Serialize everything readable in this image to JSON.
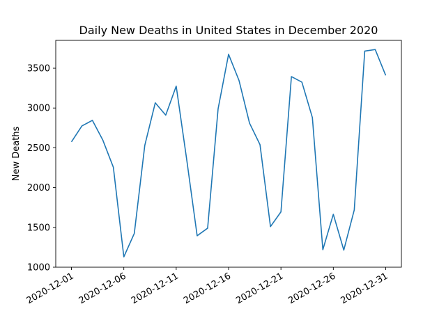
{
  "chart_data": {
    "type": "line",
    "title": "Daily New Deaths in United States in December 2020",
    "xlabel": "",
    "ylabel": "New Deaths",
    "ylim": [
      1000,
      3850
    ],
    "yticks": [
      1000,
      1500,
      2000,
      2500,
      3000,
      3500
    ],
    "xticks": [
      "2020-12-01",
      "2020-12-06",
      "2020-12-11",
      "2020-12-16",
      "2020-12-21",
      "2020-12-26",
      "2020-12-31"
    ],
    "grid": false,
    "line_color": "#1f77b4",
    "series": [
      {
        "x": [
          "2020-12-01",
          "2020-12-02",
          "2020-12-03",
          "2020-12-04",
          "2020-12-05",
          "2020-12-06",
          "2020-12-07",
          "2020-12-08",
          "2020-12-09",
          "2020-12-10",
          "2020-12-11",
          "2020-12-12",
          "2020-12-13",
          "2020-12-14",
          "2020-12-15",
          "2020-12-16",
          "2020-12-17",
          "2020-12-18",
          "2020-12-19",
          "2020-12-20",
          "2020-12-21",
          "2020-12-22",
          "2020-12-23",
          "2020-12-24",
          "2020-12-25",
          "2020-12-26",
          "2020-12-27",
          "2020-12-28",
          "2020-12-29",
          "2020-12-30",
          "2020-12-31"
        ],
        "values": [
          2575,
          2775,
          2845,
          2595,
          2255,
          1130,
          1425,
          2530,
          3065,
          2910,
          3275,
          2355,
          1395,
          1490,
          2990,
          3675,
          3345,
          2810,
          2540,
          1510,
          1695,
          3395,
          3325,
          2880,
          1220,
          1665,
          1215,
          1720,
          3715,
          3735,
          3410
        ]
      }
    ]
  }
}
